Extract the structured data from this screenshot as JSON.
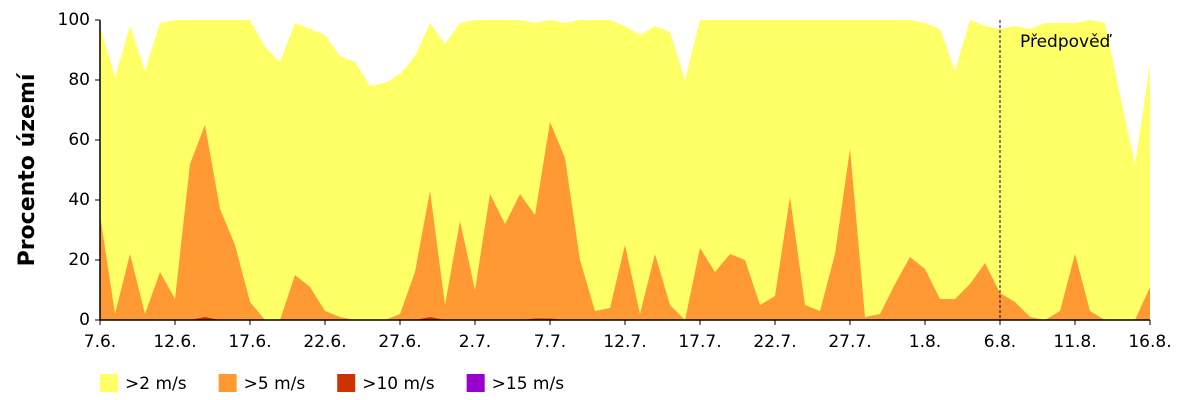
{
  "chart_data": {
    "type": "area",
    "ylabel": "Procento území",
    "categories": [
      "7.6.",
      null,
      null,
      null,
      null,
      "12.6.",
      null,
      null,
      null,
      null,
      "17.6.",
      null,
      null,
      null,
      null,
      "22.6.",
      null,
      null,
      null,
      null,
      "27.6.",
      null,
      null,
      null,
      null,
      "2.7.",
      null,
      null,
      null,
      null,
      "7.7.",
      null,
      null,
      null,
      null,
      "12.7.",
      null,
      null,
      null,
      null,
      "17.7.",
      null,
      null,
      null,
      null,
      "22.7.",
      null,
      null,
      null,
      null,
      "27.7.",
      null,
      null,
      null,
      null,
      "1.8.",
      null,
      null,
      null,
      null,
      "6.8.",
      null,
      null,
      null,
      null,
      "11.8.",
      null,
      null,
      null,
      null,
      "16.8."
    ],
    "series": [
      {
        "name": ">2 m/s",
        "color": "#ffff66",
        "values": [
          98,
          81,
          98,
          83,
          99,
          100,
          100,
          100,
          100,
          100,
          100,
          91,
          86,
          99,
          97,
          95,
          88,
          86,
          78,
          79,
          82,
          88,
          99,
          92,
          99,
          100,
          100,
          100,
          100,
          99,
          100,
          99,
          100,
          100,
          100,
          98,
          95,
          98,
          96,
          80,
          100,
          100,
          100,
          100,
          100,
          100,
          100,
          100,
          100,
          100,
          100,
          100,
          100,
          100,
          100,
          99,
          97,
          83,
          100,
          98,
          97,
          98,
          97,
          99,
          99,
          99,
          100,
          99,
          75,
          52,
          85
        ]
      },
      {
        "name": ">5 m/s",
        "color": "#ff9933",
        "values": [
          35,
          2,
          22,
          2,
          16,
          7,
          52,
          65,
          37,
          25,
          6,
          0,
          0,
          15,
          11,
          3,
          1,
          0,
          0,
          0,
          2,
          16,
          43,
          5,
          33,
          10,
          42,
          32,
          42,
          35,
          66,
          54,
          20,
          3,
          4,
          25,
          2,
          22,
          5,
          0,
          24,
          16,
          22,
          20,
          5,
          8,
          41,
          5,
          3,
          22,
          57,
          1,
          2,
          12,
          21,
          17,
          7,
          7,
          12,
          19,
          9,
          6,
          1,
          0,
          3,
          22,
          3,
          0,
          0,
          0,
          11
        ]
      },
      {
        "name": ">10 m/s",
        "color": "#cc3300",
        "values": [
          0,
          0,
          0,
          0,
          0,
          0,
          0,
          1,
          0,
          0,
          0,
          0,
          0,
          0,
          0,
          0,
          0,
          0,
          0,
          0,
          0,
          0,
          1,
          0,
          0,
          0,
          0,
          0,
          0,
          0.5,
          0.5,
          0,
          0,
          0,
          0,
          0,
          0,
          0,
          0,
          0,
          0,
          0,
          0,
          0,
          0,
          0,
          0,
          0,
          0,
          0,
          0,
          0,
          0,
          0,
          0,
          0,
          0,
          0,
          0,
          0,
          0,
          0,
          0,
          0,
          0,
          0,
          0,
          0,
          0,
          0,
          0
        ]
      },
      {
        "name": ">15 m/s",
        "color": "#9900cc",
        "values": [
          0,
          0,
          0,
          0,
          0,
          0,
          0,
          0,
          0,
          0,
          0,
          0,
          0,
          0,
          0,
          0,
          0,
          0,
          0,
          0,
          0,
          0,
          0,
          0,
          0,
          0,
          0,
          0,
          0,
          0,
          0,
          0,
          0,
          0,
          0,
          0,
          0,
          0,
          0,
          0,
          0,
          0,
          0,
          0,
          0,
          0,
          0,
          0,
          0,
          0,
          0,
          0,
          0,
          0,
          0,
          0,
          0,
          0,
          0,
          0,
          0,
          0,
          0,
          0,
          0,
          0,
          0,
          0,
          0,
          0,
          0
        ]
      }
    ],
    "ylim": [
      0,
      100
    ],
    "yticks": [
      0,
      20,
      40,
      60,
      80,
      100
    ],
    "annotations": [
      {
        "text": "Předpověď",
        "x": "6.8."
      }
    ],
    "legend": "bottom"
  }
}
